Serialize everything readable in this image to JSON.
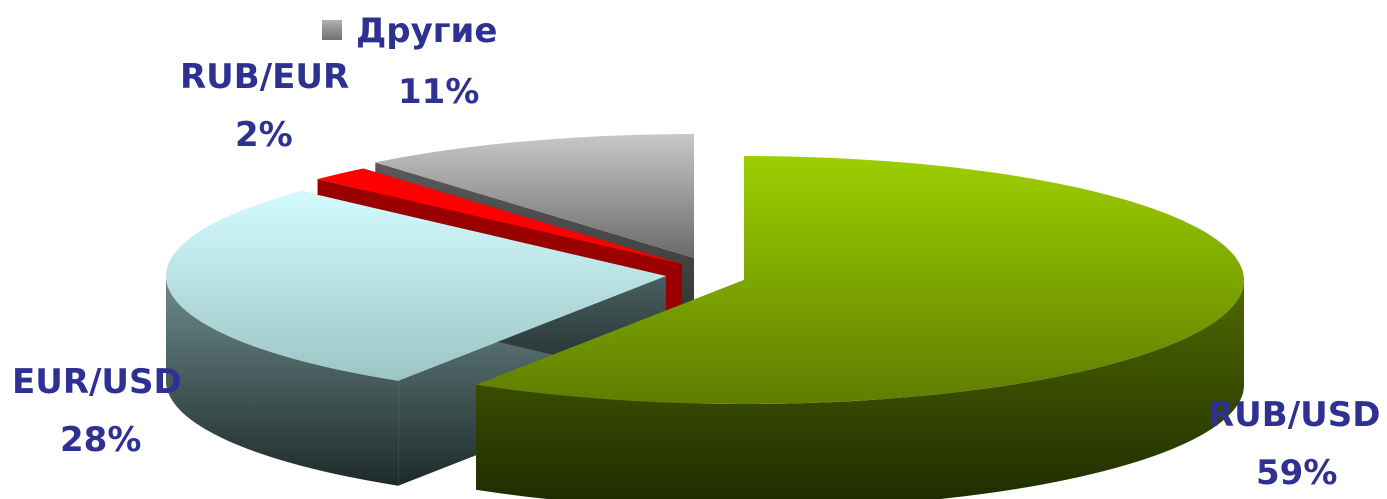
{
  "chart_data": {
    "type": "pie",
    "style": "3d-exploded",
    "slices": [
      {
        "label": "RUB/USD",
        "value": 59,
        "value_label": "59%",
        "color": "#8fbf00"
      },
      {
        "label": "EUR/USD",
        "value": 28,
        "value_label": "28%",
        "color": "#c8f4f6"
      },
      {
        "label": "RUB/EUR",
        "value": 2,
        "value_label": "2%",
        "color": "#ff0000"
      },
      {
        "label": "Другие",
        "value": 11,
        "value_label": "11%",
        "color": "#a8a8a8"
      }
    ],
    "legend": {
      "label": "Другие",
      "placement": "top"
    },
    "label_color": "#2e3192"
  }
}
